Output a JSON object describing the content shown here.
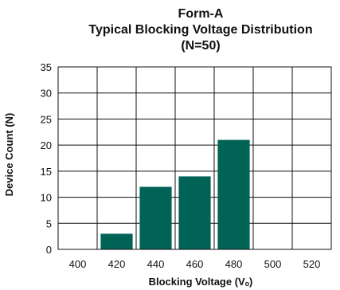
{
  "chart_data": {
    "type": "bar",
    "title": [
      "Form-A",
      "Typical Blocking Voltage Distribution",
      "(N=50)"
    ],
    "xlabel": "Blocking Voltage (Vₒ)",
    "ylabel": "Device Count (N)",
    "categories": [
      "400",
      "420",
      "440",
      "460",
      "480",
      "500",
      "520"
    ],
    "values": [
      0,
      3,
      12,
      14,
      21,
      0,
      0
    ],
    "ylim": [
      0,
      35
    ],
    "yticks": [
      0,
      5,
      10,
      15,
      20,
      25,
      30,
      35
    ],
    "grid": true,
    "bar_color": "#006356"
  }
}
